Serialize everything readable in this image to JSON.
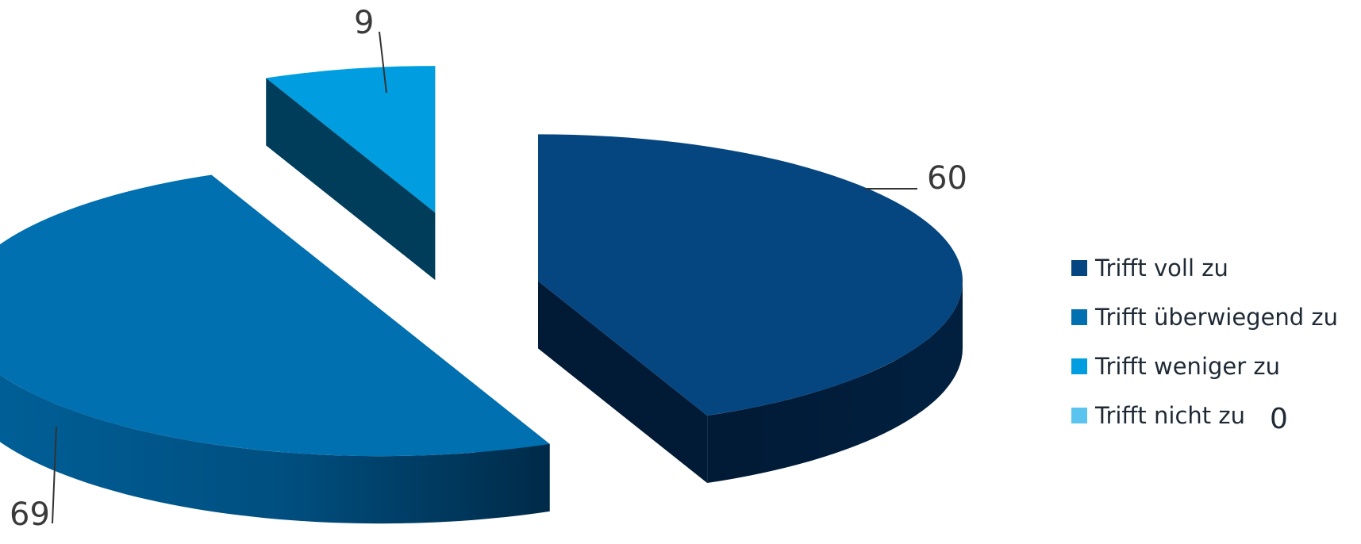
{
  "chart_data": {
    "type": "pie",
    "title": "",
    "categories": [
      "Trifft voll zu",
      "Trifft überwiegend zu",
      "Trifft weniger zu",
      "Trifft nicht zu"
    ],
    "values": [
      60,
      69,
      9,
      0
    ],
    "data_labels": [
      "60",
      "69",
      "9",
      "0"
    ],
    "colors": [
      "#054680",
      "#0070b0",
      "#009ee0",
      "#5bc4ee"
    ],
    "side_colors": [
      "#011a35",
      "#00416e",
      "#003d5a",
      "#2a7fa8"
    ],
    "exploded": true,
    "three_d": true,
    "legend": {
      "position": "right",
      "entries": [
        "Trifft voll zu",
        "Trifft überwiegend zu",
        "Trifft weniger zu",
        "Trifft nicht zu"
      ]
    }
  }
}
